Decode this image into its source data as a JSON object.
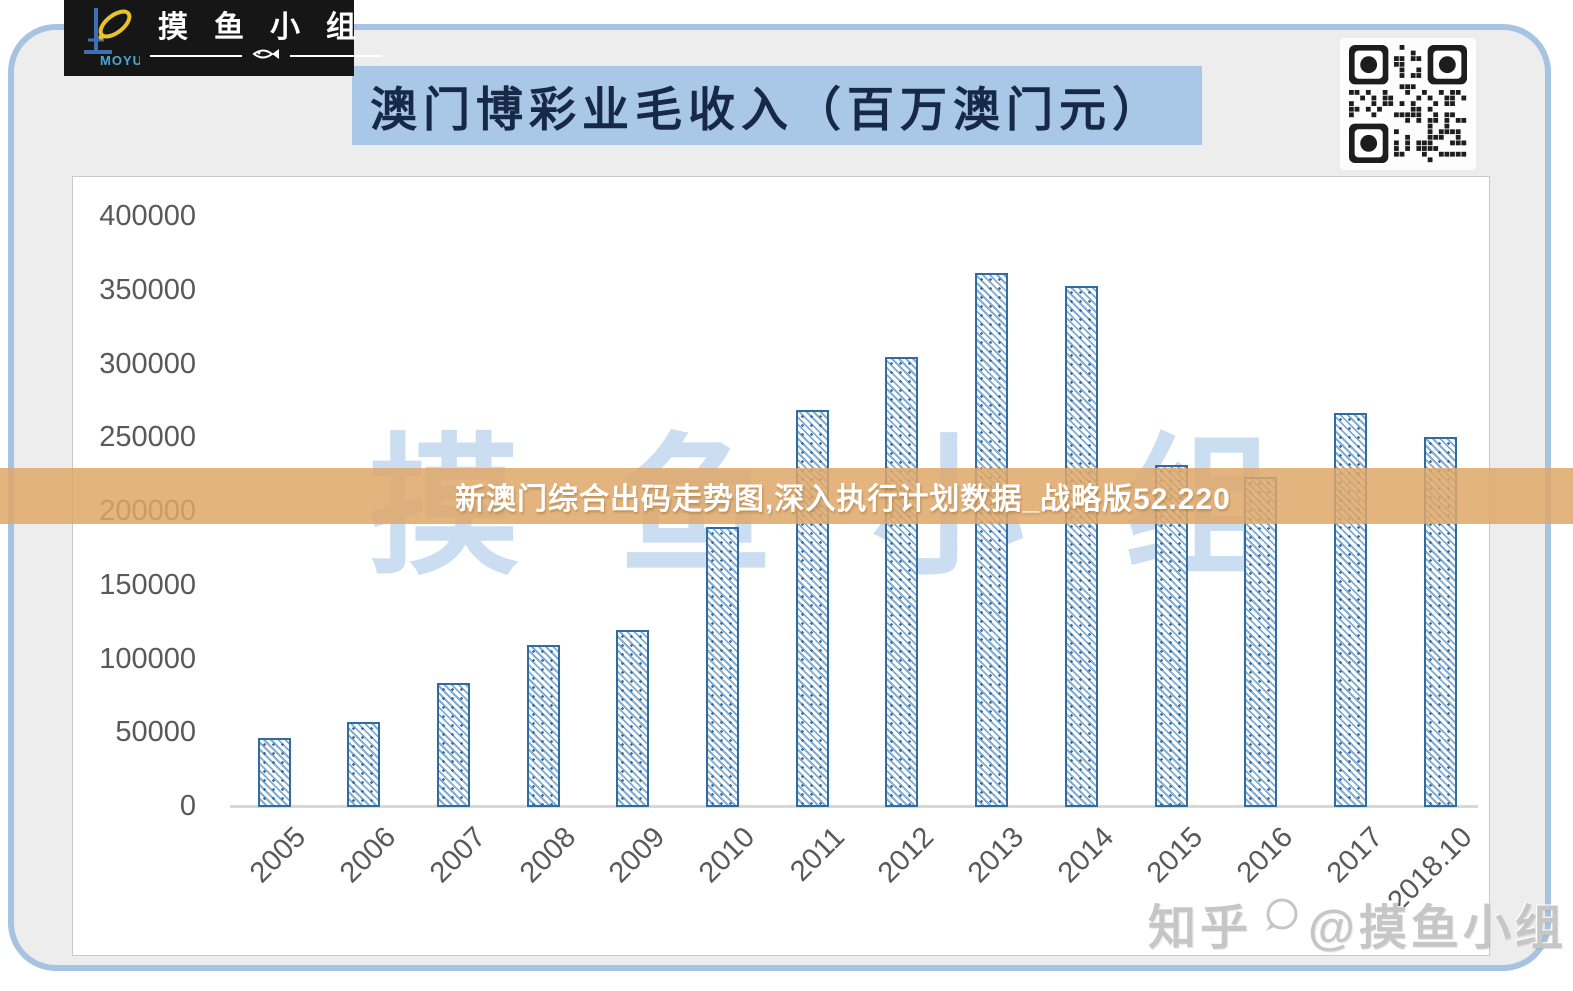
{
  "header": {
    "logo": {
      "brand_mark": "MOYU",
      "brand_name": "摸鱼小组"
    },
    "title": "澳门博彩业毛收入（百万澳门元）",
    "title_bg": "#A9C8E7"
  },
  "overlay_banner": {
    "text": "新澳门综合出码走势图,深入执行计划数据_战略版52.220",
    "bg_color": "#DFA768",
    "text_color": "#FFFFFF"
  },
  "watermarks": {
    "chart_bg_text": "摸鱼小组",
    "site": "知乎",
    "handle": "@摸鱼小组"
  },
  "chart_data": {
    "type": "bar",
    "title": "澳门博彩业毛收入（百万澳门元）",
    "categories": [
      "2005",
      "2006",
      "2007",
      "2008",
      "2009",
      "2010",
      "2011",
      "2012",
      "2013",
      "2014",
      "2015",
      "2016",
      "2017",
      "2018.10"
    ],
    "values": [
      47000,
      57500,
      84000,
      110000,
      120000,
      190000,
      269000,
      305000,
      362000,
      353000,
      232000,
      224000,
      267000,
      251000
    ],
    "ylim": [
      0,
      400000
    ],
    "yticks": [
      0,
      50000,
      100000,
      150000,
      200000,
      250000,
      300000,
      350000,
      400000
    ],
    "xlabel": "",
    "ylabel": "",
    "grid": false,
    "legend": false,
    "bar_style": {
      "border": "#2E6CA3",
      "fill": "#FFFFFF",
      "hatch": "diagonal",
      "hatch_color": "#6D9CC9"
    }
  },
  "colors": {
    "frame_border": "#A6C3E1",
    "inner_bg": "#EDEDED",
    "panel_bg": "#FFFFFF",
    "axis_text": "#595959",
    "title_text": "#182947",
    "watermark_blue": "#CBDEF1"
  }
}
